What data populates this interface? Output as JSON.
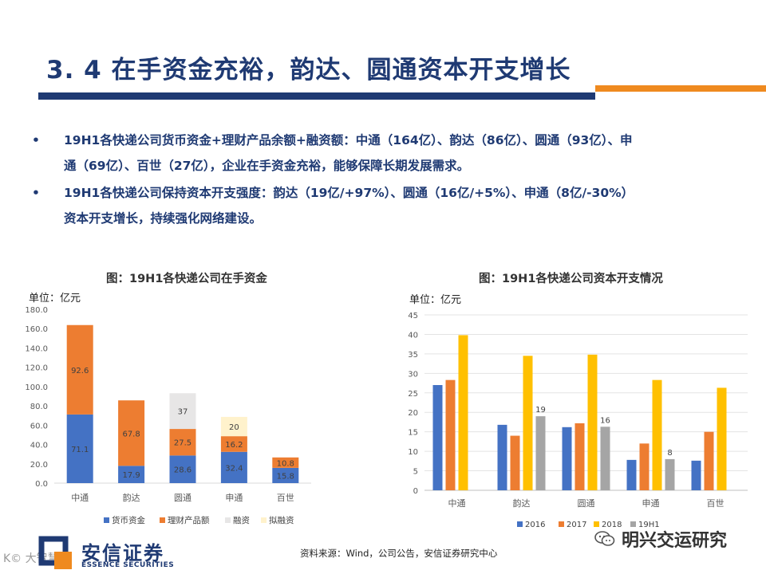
{
  "header": {
    "title": "3. 4 在手资金充裕，韵达、圆通资本开支增长"
  },
  "bullets": [
    {
      "marker": "•",
      "line1": "19H1各快递公司货币资金+理财产品余额+融资额：中通（164亿）、韵达（86亿）、圆通（93亿）、申",
      "line2": "通（69亿）、百世（27亿），企业在手资金充裕，能够保障长期发展需求。"
    },
    {
      "marker": "•",
      "line1": "19H1各快递公司保持资本开支强度：韵达（19亿/+97%）、圆通（16亿/+5%）、申通（8亿/-30%）",
      "line2": "资本开支增长，持续强化网络建设。"
    }
  ],
  "chart_data": [
    {
      "type": "bar",
      "stacked": true,
      "title": "图：19H1各快递公司在手资金",
      "unit_label": "单位：亿元",
      "categories": [
        "中通",
        "韵达",
        "圆通",
        "申通",
        "百世"
      ],
      "ylim": [
        0,
        180
      ],
      "yticks": [
        0,
        20,
        40,
        60,
        80,
        100,
        120,
        140,
        160,
        180
      ],
      "ytick_labels": [
        "0.0",
        "20.0",
        "40.0",
        "60.0",
        "80.0",
        "100.0",
        "120.0",
        "140.0",
        "160.0",
        "180.0"
      ],
      "series": [
        {
          "name": "货币资金",
          "color": "#4472c4",
          "values": [
            71.1,
            17.9,
            28.6,
            32.4,
            15.8
          ],
          "labels": [
            "71.1",
            "17.9",
            "28.6",
            "32.4",
            "15.8"
          ]
        },
        {
          "name": "理财产品额",
          "color": "#ed7d31",
          "values": [
            92.6,
            67.8,
            27.5,
            16.2,
            10.8
          ],
          "labels": [
            "92.6",
            "67.8",
            "27.5",
            "16.2",
            "10.8"
          ]
        },
        {
          "name": "融资",
          "color": "#e7e6e6",
          "values": [
            0,
            0,
            37,
            0,
            0
          ],
          "labels": [
            "",
            "",
            "37",
            "",
            ""
          ]
        },
        {
          "name": "拟融资",
          "color": "#fff2cc",
          "values": [
            0,
            0,
            0,
            20,
            0
          ],
          "labels": [
            "",
            "",
            "",
            "20",
            ""
          ]
        }
      ],
      "legend": "bottom"
    },
    {
      "type": "bar",
      "stacked": false,
      "title": "图：19H1各快递公司资本开支情况",
      "unit_label": "单位：亿元",
      "categories": [
        "中通",
        "韵达",
        "圆通",
        "申通",
        "百世"
      ],
      "ylim": [
        0,
        45
      ],
      "yticks": [
        0,
        5,
        10,
        15,
        20,
        25,
        30,
        35,
        40,
        45
      ],
      "ytick_labels": [
        "0",
        "5",
        "10",
        "15",
        "20",
        "25",
        "30",
        "35",
        "40",
        "45"
      ],
      "series": [
        {
          "name": "2016",
          "color": "#4472c4",
          "values": [
            27,
            16.8,
            16.2,
            7.8,
            7.6
          ],
          "labels": [
            "",
            "",
            "",
            "",
            ""
          ]
        },
        {
          "name": "2017",
          "color": "#ed7d31",
          "values": [
            28.3,
            14,
            17.2,
            12,
            15
          ],
          "labels": [
            "",
            "",
            "",
            "",
            ""
          ]
        },
        {
          "name": "2018",
          "color": "#ffc000",
          "values": [
            39.8,
            34.5,
            34.8,
            28.3,
            26.3
          ],
          "labels": [
            "",
            "",
            "",
            "",
            ""
          ]
        },
        {
          "name": "19H1",
          "color": "#a5a5a5",
          "values": [
            0,
            19,
            16.3,
            8,
            0
          ],
          "labels": [
            "",
            "19",
            "16",
            "8",
            ""
          ]
        }
      ],
      "legend": "bottom"
    }
  ],
  "footer": {
    "source": "资料来源：Wind，公司公告，安信证券研究中心",
    "logo_cn": "安信证券",
    "logo_en": "ESSENCE SECURITIES",
    "wechat": "明兴交运研究",
    "watermark": "K©  大智慧"
  },
  "colors": {
    "navy": "#1f3a73",
    "orange": "#ef8a1f"
  }
}
